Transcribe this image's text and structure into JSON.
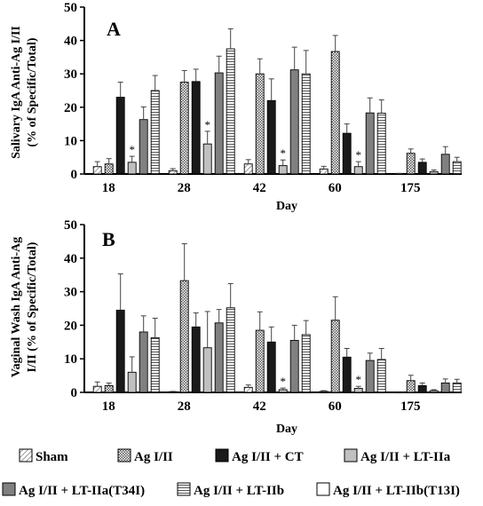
{
  "colors": {
    "sham_pattern": "#777777",
    "ag_pattern": "#555555",
    "ag_ct": "#1a1a1a",
    "ag_lt2a": "#c0c0c0",
    "ag_lt2a_t34i": "#808080",
    "ag_lt2b_pattern": "#555555",
    "ag_lt2b_t13i": "#ffffff"
  },
  "legend": {
    "items": [
      {
        "key": "sham",
        "label": "Sham"
      },
      {
        "key": "ag",
        "label": "Ag I/II"
      },
      {
        "key": "ag_ct",
        "label": "Ag I/II + CT"
      },
      {
        "key": "ag_lt2a",
        "label": "Ag I/II + LT-IIa"
      },
      {
        "key": "ag_lt2a_t34i",
        "label": "Ag I/II + LT-IIa(T34I)"
      },
      {
        "key": "ag_lt2b",
        "label": "Ag I/II + LT-IIb"
      },
      {
        "key": "ag_lt2b_t13i",
        "label": "Ag I/II + LT-IIb(T13I)"
      }
    ]
  },
  "chart_data": [
    {
      "type": "bar",
      "panel_label": "A",
      "ylabel_lines": [
        "Salivary IgA Anti-Ag I/II",
        "(% of Specific/Total)"
      ],
      "xlabel": "Day",
      "ylim": [
        0,
        50
      ],
      "yticks": [
        0,
        10,
        20,
        30,
        40,
        50
      ],
      "categories": [
        "18",
        "28",
        "42",
        "60",
        "175"
      ],
      "series": [
        {
          "name": "Sham",
          "key": "sham",
          "values": [
            2.2,
            1.0,
            3.0,
            1.5,
            0.1
          ],
          "errors": [
            1.5,
            0.6,
            1.3,
            0.8,
            0.1
          ]
        },
        {
          "name": "Ag I/II",
          "key": "ag",
          "values": [
            3.0,
            27.5,
            30.0,
            36.7,
            6.2
          ],
          "errors": [
            1.6,
            3.5,
            4.5,
            4.8,
            1.3
          ]
        },
        {
          "name": "Ag I/II + CT",
          "key": "ag_ct",
          "values": [
            23.0,
            27.7,
            22.0,
            12.2,
            3.5
          ],
          "errors": [
            4.5,
            3.7,
            6.5,
            2.8,
            1.0
          ]
        },
        {
          "name": "Ag I/II + LT-IIa",
          "key": "ag_lt2a",
          "values": [
            3.5,
            9.0,
            2.5,
            2.2,
            0.7
          ],
          "errors": [
            1.8,
            3.8,
            1.7,
            1.5,
            0.5
          ]
        },
        {
          "name": "Ag I/II + LT-IIa(T34I)",
          "key": "ag_lt2a_t34i",
          "values": [
            16.3,
            30.3,
            31.2,
            18.3,
            5.9
          ],
          "errors": [
            3.8,
            5.0,
            6.8,
            4.5,
            2.3
          ]
        },
        {
          "name": "Ag I/II + LT-IIb",
          "key": "ag_lt2b",
          "values": [
            25.0,
            37.5,
            30.0,
            18.2,
            3.7
          ],
          "errors": [
            4.5,
            6.0,
            7.0,
            4.0,
            1.3
          ]
        },
        {
          "name": "Ag I/II + LT-IIb(T13I)",
          "key": "ag_lt2b_t13i",
          "values": [
            0,
            0,
            0,
            0,
            0
          ],
          "errors": [
            0,
            0,
            0,
            0,
            0
          ]
        }
      ],
      "significance": [
        {
          "category": "18",
          "series_key": "ag_lt2a",
          "mark": "*"
        },
        {
          "category": "28",
          "series_key": "ag_lt2a",
          "mark": "*"
        },
        {
          "category": "42",
          "series_key": "ag_lt2a",
          "mark": "*"
        },
        {
          "category": "60",
          "series_key": "ag_lt2a",
          "mark": "*"
        }
      ]
    },
    {
      "type": "bar",
      "panel_label": "B",
      "ylabel_lines": [
        "Vaginal Wash IgA Anti-Ag",
        "I/II (% of Specific/Total)"
      ],
      "xlabel": "Day",
      "ylim": [
        0,
        50
      ],
      "yticks": [
        0,
        10,
        20,
        30,
        40,
        50
      ],
      "categories": [
        "18",
        "28",
        "42",
        "60",
        "175"
      ],
      "series": [
        {
          "name": "Sham",
          "key": "sham",
          "values": [
            1.8,
            0.2,
            1.5,
            0.3,
            0.1
          ],
          "errors": [
            1.3,
            0.1,
            0.7,
            0.2,
            0.1
          ]
        },
        {
          "name": "Ag I/II",
          "key": "ag",
          "values": [
            2.0,
            33.3,
            18.5,
            21.5,
            3.5
          ],
          "errors": [
            0.8,
            11.0,
            5.5,
            7.0,
            1.6
          ]
        },
        {
          "name": "Ag I/II + CT",
          "key": "ag_ct",
          "values": [
            24.5,
            19.5,
            15.0,
            10.5,
            2.0
          ],
          "errors": [
            10.8,
            4.2,
            4.5,
            2.6,
            0.8
          ]
        },
        {
          "name": "Ag I/II + LT-IIa",
          "key": "ag_lt2a",
          "values": [
            6.0,
            13.3,
            0.8,
            1.2,
            0.5
          ],
          "errors": [
            4.6,
            10.8,
            0.5,
            0.6,
            0.3
          ]
        },
        {
          "name": "Ag I/II + LT-IIa(T34I)",
          "key": "ag_lt2a_t34i",
          "values": [
            18.0,
            20.7,
            15.5,
            9.5,
            2.8
          ],
          "errors": [
            4.8,
            4.0,
            4.5,
            2.2,
            1.2
          ]
        },
        {
          "name": "Ag I/II + LT-IIb",
          "key": "ag_lt2b",
          "values": [
            16.3,
            25.2,
            17.2,
            9.8,
            2.8
          ],
          "errors": [
            5.8,
            7.2,
            4.2,
            3.3,
            1.1
          ]
        },
        {
          "name": "Ag I/II + LT-IIb(T13I)",
          "key": "ag_lt2b_t13i",
          "values": [
            0,
            0,
            0,
            0,
            0
          ],
          "errors": [
            0,
            0,
            0,
            0,
            0
          ]
        }
      ],
      "significance": [
        {
          "category": "42",
          "series_key": "ag_lt2a",
          "mark": "*"
        },
        {
          "category": "60",
          "series_key": "ag_lt2a",
          "mark": "*"
        }
      ]
    }
  ]
}
